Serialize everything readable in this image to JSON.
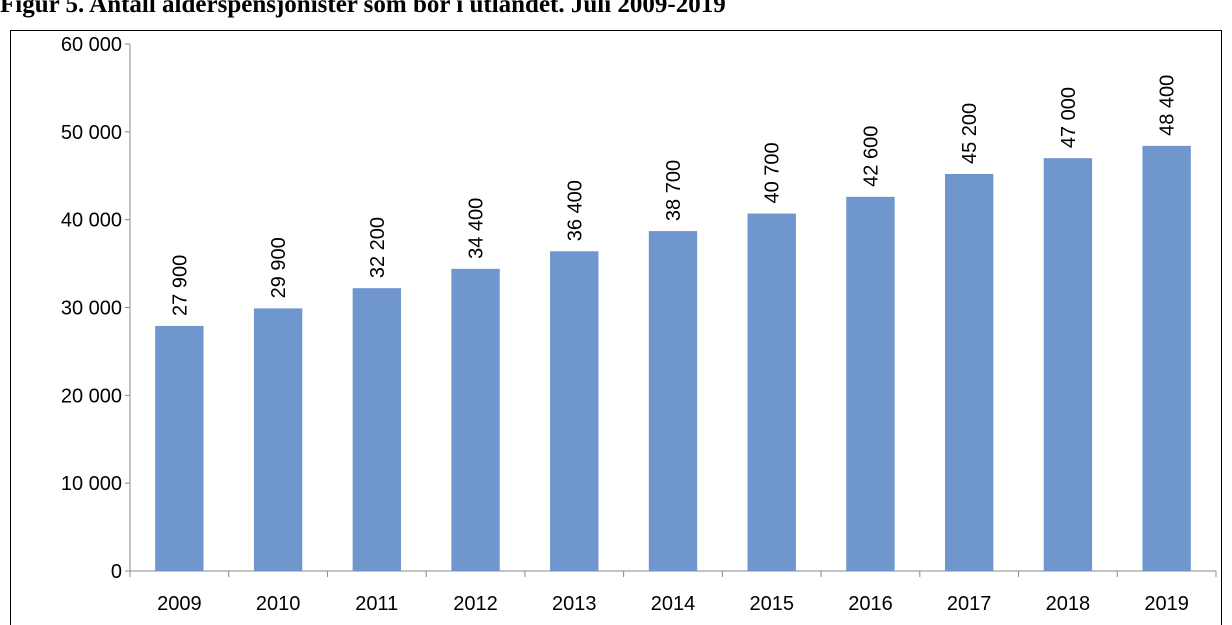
{
  "chart_data": {
    "type": "bar",
    "title": "Figur 5. Antall alderspensjonister som bor i utlandet. Juli 2009-2019",
    "categories": [
      "2009",
      "2010",
      "2011",
      "2012",
      "2013",
      "2014",
      "2015",
      "2016",
      "2017",
      "2018",
      "2019"
    ],
    "values": [
      27900,
      29900,
      32200,
      34400,
      36400,
      38700,
      40700,
      42600,
      45200,
      47000,
      48400
    ],
    "value_labels": [
      "27 900",
      "29 900",
      "32 200",
      "34 400",
      "36 400",
      "38 700",
      "40 700",
      "42 600",
      "45 200",
      "47 000",
      "48 400"
    ],
    "color": "#6f97cd",
    "ylim": [
      0,
      60000
    ],
    "yticks": [
      {
        "value": 0,
        "label": "0"
      },
      {
        "value": 10000,
        "label": "10 000"
      },
      {
        "value": 20000,
        "label": "20 000"
      },
      {
        "value": 30000,
        "label": "30 000"
      },
      {
        "value": 40000,
        "label": "40 000"
      },
      {
        "value": 50000,
        "label": "50 000"
      },
      {
        "value": 60000,
        "label": "60 000"
      }
    ],
    "grid": false
  }
}
